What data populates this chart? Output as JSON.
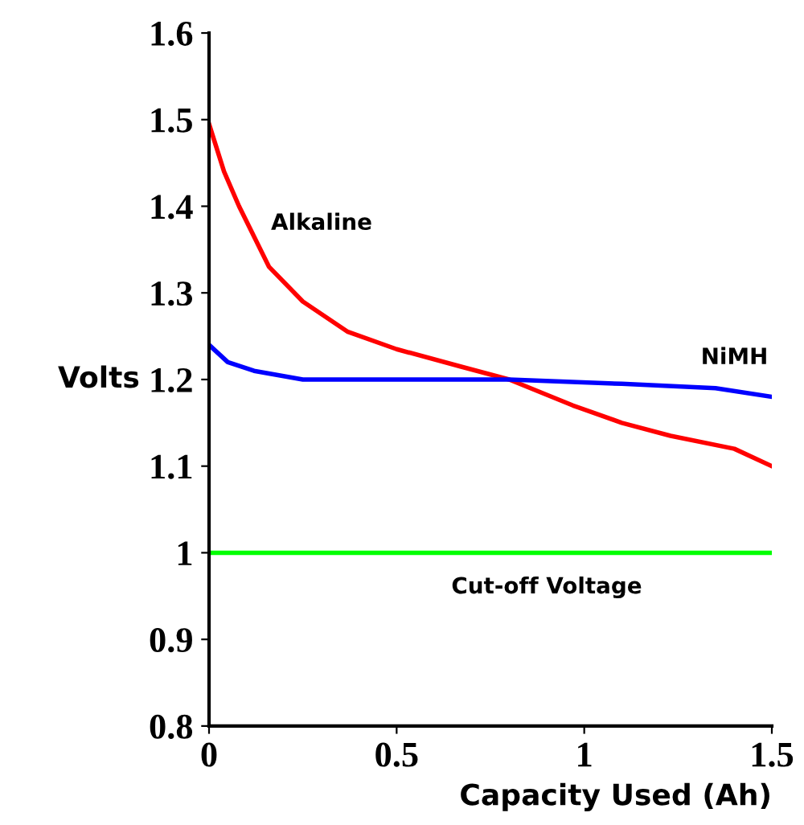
{
  "chart_data": {
    "type": "line",
    "xlabel": "Capacity Used (Ah)",
    "ylabel": "Volts",
    "xlim": [
      0,
      1.5
    ],
    "xticks": [
      0,
      0.5,
      1,
      1.5
    ],
    "ylim": [
      0.8,
      1.6
    ],
    "yticks": [
      0.8,
      0.9,
      1,
      1.1,
      1.2,
      1.3,
      1.4,
      1.5,
      1.6
    ],
    "grid": false,
    "legend": false,
    "marker": "none",
    "line_style": "solid",
    "series": [
      {
        "name": "Alkaline",
        "color": "#ff0000",
        "x": [
          0,
          0.04,
          0.08,
          0.16,
          0.25,
          0.37,
          0.5,
          0.67,
          0.8,
          0.97,
          1.1,
          1.23,
          1.4,
          1.5
        ],
        "values": [
          1.495,
          1.44,
          1.4,
          1.33,
          1.29,
          1.255,
          1.235,
          1.215,
          1.2,
          1.17,
          1.15,
          1.135,
          1.12,
          1.1
        ]
      },
      {
        "name": "NiMH",
        "color": "#0000ff",
        "x": [
          0,
          0.05,
          0.12,
          0.25,
          0.5,
          0.8,
          1.1,
          1.35,
          1.5
        ],
        "values": [
          1.24,
          1.22,
          1.21,
          1.2,
          1.2,
          1.2,
          1.195,
          1.19,
          1.18
        ]
      }
    ],
    "ref_lines": [
      {
        "axis": "y",
        "value": 1,
        "label": "Cut-off Voltage",
        "color": "#00ff00",
        "line_style": "solid"
      }
    ]
  }
}
